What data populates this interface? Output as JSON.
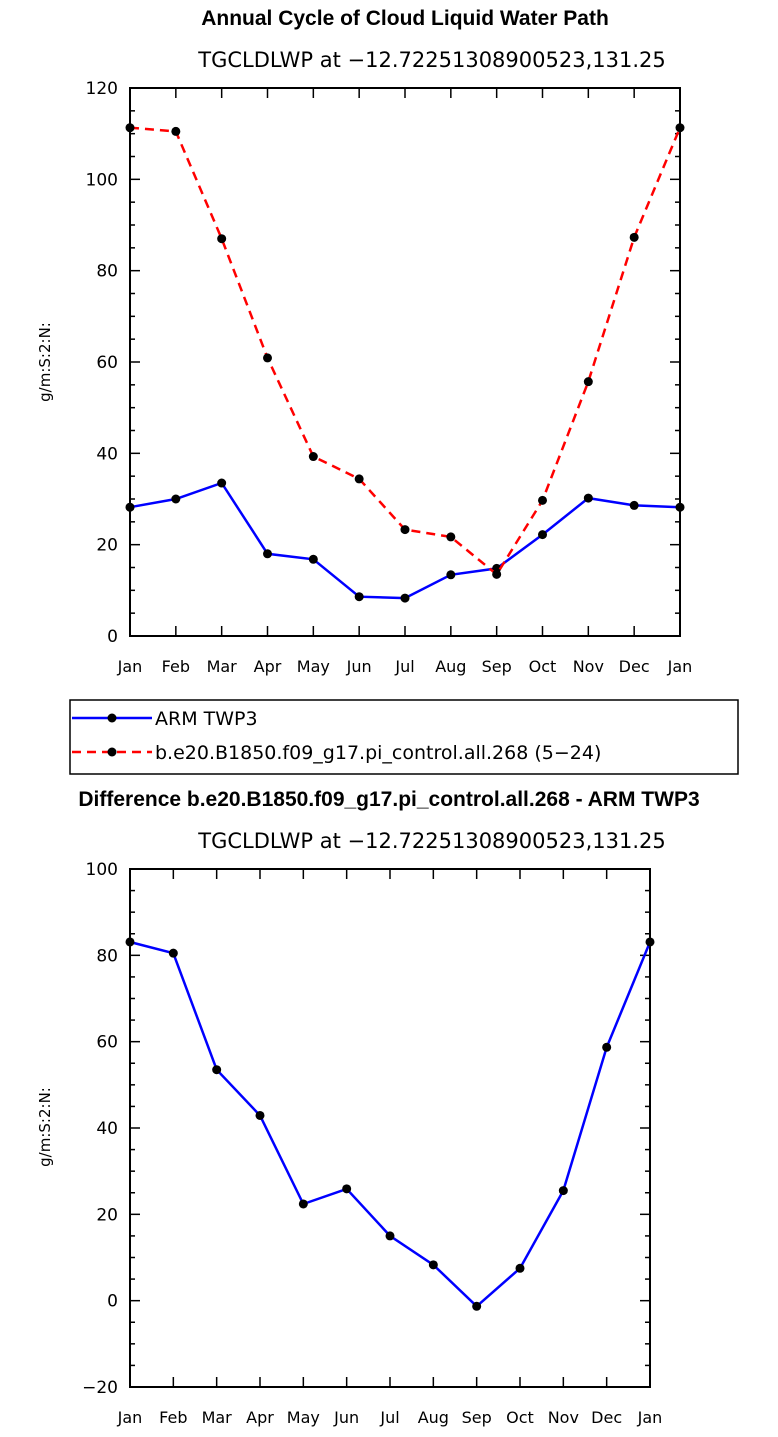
{
  "chart_data": [
    {
      "type": "line",
      "title": "Annual Cycle of Cloud Liquid Water Path",
      "subtitle": "TGCLDLWP at −12.72251308900523,131.25",
      "ylabel": "g/m:S:2:N:",
      "xlabel": "",
      "categories": [
        "Jan",
        "Feb",
        "Mar",
        "Apr",
        "May",
        "Jun",
        "Jul",
        "Aug",
        "Sep",
        "Oct",
        "Nov",
        "Dec",
        "Jan"
      ],
      "ylim": [
        0,
        120
      ],
      "yticks": [
        0,
        20,
        40,
        60,
        80,
        100,
        120
      ],
      "series": [
        {
          "name": "ARM TWP3",
          "color": "#0000ff",
          "dash": "solid",
          "values": [
            28.2,
            30.0,
            33.5,
            18.0,
            16.8,
            8.6,
            8.3,
            13.4,
            14.8,
            22.2,
            30.2,
            28.6,
            28.2
          ]
        },
        {
          "name": "b.e20.B1850.f09_g17.pi_control.all.268 (5−24)",
          "color": "#ff0000",
          "dash": "dashed",
          "values": [
            111.3,
            110.5,
            87.0,
            60.9,
            39.3,
            34.4,
            23.3,
            21.7,
            13.5,
            29.7,
            55.7,
            87.3,
            111.3
          ]
        }
      ],
      "legend": "below"
    },
    {
      "type": "line",
      "title": "Difference b.e20.B1850.f09_g17.pi_control.all.268 - ARM TWP3",
      "subtitle": "TGCLDLWP at −12.72251308900523,131.25",
      "ylabel": "g/m:S:2:N:",
      "xlabel": "",
      "categories": [
        "Jan",
        "Feb",
        "Mar",
        "Apr",
        "May",
        "Jun",
        "Jul",
        "Aug",
        "Sep",
        "Oct",
        "Nov",
        "Dec",
        "Jan"
      ],
      "ylim": [
        -20,
        100
      ],
      "yticks": [
        -20,
        0,
        20,
        40,
        60,
        80,
        100
      ],
      "series": [
        {
          "color": "#0000ff",
          "dash": "solid",
          "values": [
            83.1,
            80.5,
            53.5,
            42.9,
            22.4,
            25.9,
            15.0,
            8.3,
            -1.3,
            7.5,
            25.5,
            58.7,
            83.1
          ]
        }
      ]
    }
  ]
}
